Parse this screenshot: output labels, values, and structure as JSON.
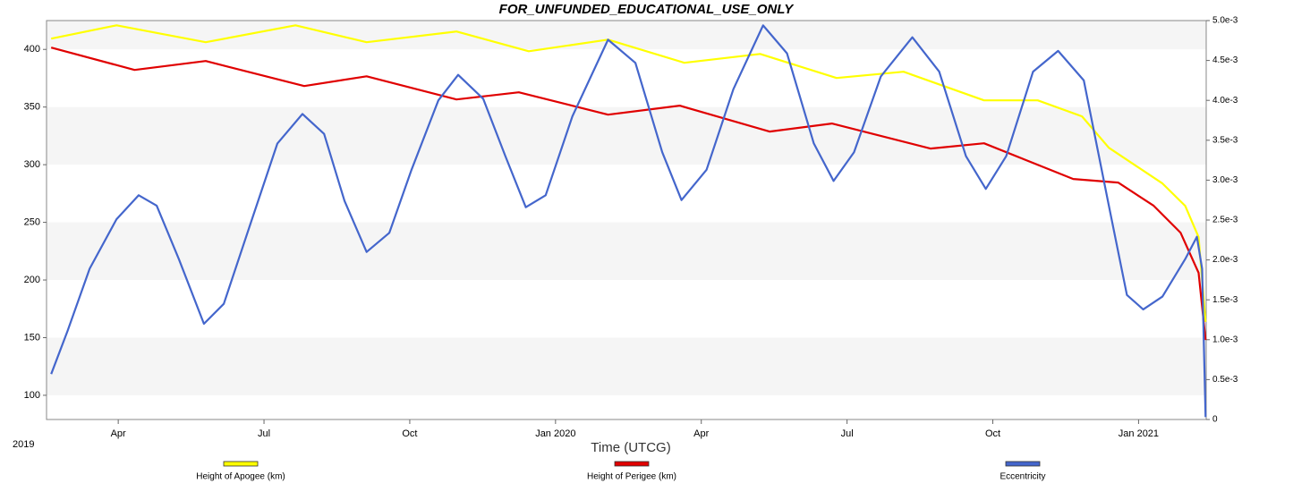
{
  "chart_data": {
    "type": "line",
    "title": "FOR_UNFUNDED_EDUCATIONAL_USE_ONLY",
    "x_label": "Time (UTCG)",
    "x_start_label": "2019",
    "xlim": [
      2019.127,
      2021.116
    ],
    "xticks": [
      {
        "value": 2019.25,
        "label": "Apr"
      },
      {
        "value": 2019.5,
        "label": "Jul"
      },
      {
        "value": 2019.75,
        "label": "Oct"
      },
      {
        "value": 2020.0,
        "label": "Jan 2020"
      },
      {
        "value": 2020.25,
        "label": "Apr"
      },
      {
        "value": 2020.5,
        "label": "Jul"
      },
      {
        "value": 2020.75,
        "label": "Oct"
      },
      {
        "value": 2021.0,
        "label": "Jan 2021"
      }
    ],
    "ylim": [
      79,
      425
    ],
    "yticks": [
      100,
      150,
      200,
      250,
      300,
      350,
      400
    ],
    "y2lim": [
      0,
      0.005
    ],
    "y2ticks": [
      0,
      {
        "value": 0.0005,
        "label": "0.5e-3"
      },
      {
        "value": 0.001,
        "label": "1.0e-3"
      },
      {
        "value": 0.0015,
        "label": "1.5e-3"
      },
      {
        "value": 0.002,
        "label": "2.0e-3"
      },
      {
        "value": 0.0025,
        "label": "2.5e-3"
      },
      {
        "value": 0.003,
        "label": "3.0e-3"
      },
      {
        "value": 0.0035,
        "label": "3.5e-3"
      },
      {
        "value": 0.004,
        "label": "4.0e-3"
      },
      {
        "value": 0.0045,
        "label": "4.5e-3"
      },
      {
        "value": 0.005,
        "label": "5.0e-3"
      }
    ],
    "grid": true,
    "series": [
      {
        "name": "Height of Apogee (km)",
        "color": "#ffff00",
        "x": [
          2019.135,
          2019.247,
          2019.4,
          2019.554,
          2019.676,
          2019.83,
          2019.954,
          2020.09,
          2020.221,
          2020.351,
          2020.482,
          2020.597,
          2020.735,
          2020.827,
          2020.903,
          2020.949,
          2020.995,
          2021.041,
          2021.08,
          2021.103,
          2021.115
        ],
        "values": [
          409.3,
          420.9,
          406.2,
          420.9,
          406.2,
          415.5,
          398.4,
          408.5,
          388.4,
          396.1,
          375.2,
          380.6,
          355.8,
          355.8,
          341.9,
          314.7,
          299.2,
          283.7,
          264.3,
          237.2,
          163.6
        ]
      },
      {
        "name": "Height of Perigee (km)",
        "color": "#e00000",
        "x": [
          2019.135,
          2019.278,
          2019.4,
          2019.569,
          2019.676,
          2019.83,
          2019.937,
          2020.09,
          2020.213,
          2020.367,
          2020.474,
          2020.643,
          2020.735,
          2020.888,
          2020.965,
          2021.026,
          2021.072,
          2021.103,
          2021.115
        ],
        "values": [
          401.6,
          382.2,
          389.9,
          368.2,
          376.7,
          356.6,
          362.8,
          343.4,
          351.2,
          328.7,
          335.7,
          314.0,
          318.6,
          287.6,
          284.5,
          264.3,
          241.1,
          206.2,
          148.0
        ]
      },
      {
        "name": "Eccentricity",
        "color": "#4466cc",
        "axis": "y2",
        "x": [
          2019.135,
          2019.163,
          2019.201,
          2019.247,
          2019.285,
          2019.316,
          2019.354,
          2019.397,
          2019.431,
          2019.477,
          2019.523,
          2019.566,
          2019.603,
          2019.638,
          2019.676,
          2019.715,
          2019.753,
          2019.799,
          2019.833,
          2019.876,
          2019.914,
          2019.949,
          2019.983,
          2020.029,
          2020.09,
          2020.137,
          2020.183,
          2020.216,
          2020.259,
          2020.305,
          2020.356,
          2020.397,
          2020.443,
          2020.477,
          2020.512,
          2020.558,
          2020.612,
          2020.658,
          2020.704,
          2020.738,
          2020.773,
          2020.819,
          2020.862,
          2020.906,
          2020.949,
          2020.98,
          2021.008,
          2021.041,
          2021.08,
          2021.1,
          2021.109,
          2021.115
        ],
        "values": [
          0.00057,
          0.00111,
          0.00189,
          0.00251,
          0.00281,
          0.00268,
          0.00201,
          0.0012,
          0.00145,
          0.00246,
          0.00346,
          0.00383,
          0.00358,
          0.00274,
          0.0021,
          0.00234,
          0.00313,
          0.004,
          0.00432,
          0.00402,
          0.0033,
          0.00266,
          0.00281,
          0.0038,
          0.00476,
          0.00447,
          0.00335,
          0.00275,
          0.00313,
          0.00414,
          0.00494,
          0.00459,
          0.00346,
          0.00299,
          0.00335,
          0.0043,
          0.00479,
          0.00436,
          0.0033,
          0.00289,
          0.0033,
          0.00436,
          0.00462,
          0.00425,
          0.00268,
          0.00156,
          0.00138,
          0.00154,
          0.00201,
          0.00229,
          0.00189,
          3e-05
        ]
      }
    ]
  }
}
